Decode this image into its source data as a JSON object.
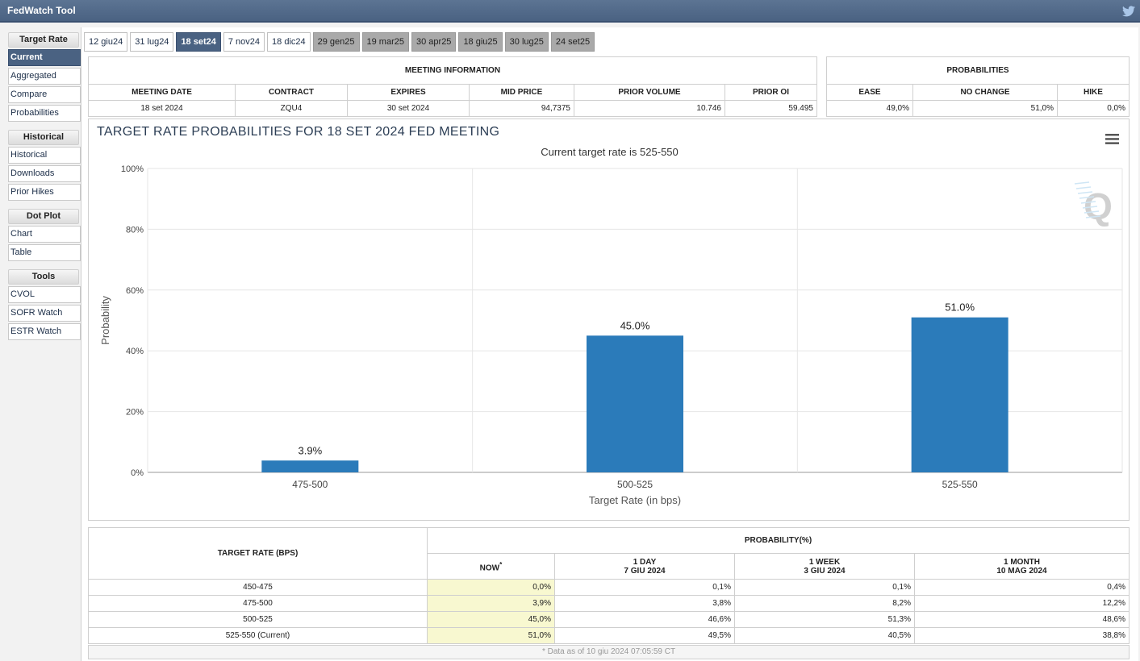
{
  "app": {
    "title": "FedWatch Tool"
  },
  "sidebar": {
    "sections": [
      {
        "heading": "Target Rate",
        "items": [
          "Current",
          "Aggregated",
          "Compare",
          "Probabilities"
        ]
      },
      {
        "heading": "Historical",
        "items": [
          "Historical",
          "Downloads",
          "Prior Hikes"
        ]
      },
      {
        "heading": "Dot Plot",
        "items": [
          "Chart",
          "Table"
        ]
      },
      {
        "heading": "Tools",
        "items": [
          "CVOL",
          "SOFR Watch",
          "ESTR Watch"
        ]
      }
    ]
  },
  "tabs": [
    {
      "label": "12 giu24",
      "state": "normal"
    },
    {
      "label": "31 lug24",
      "state": "normal"
    },
    {
      "label": "18 set24",
      "state": "active"
    },
    {
      "label": "7 nov24",
      "state": "normal"
    },
    {
      "label": "18 dic24",
      "state": "normal"
    },
    {
      "label": "29 gen25",
      "state": "future"
    },
    {
      "label": "19 mar25",
      "state": "future"
    },
    {
      "label": "30 apr25",
      "state": "future"
    },
    {
      "label": "18 giu25",
      "state": "future"
    },
    {
      "label": "30 lug25",
      "state": "future"
    },
    {
      "label": "24 set25",
      "state": "future"
    }
  ],
  "meeting_info": {
    "heading": "MEETING INFORMATION",
    "columns": [
      "MEETING DATE",
      "CONTRACT",
      "EXPIRES",
      "MID PRICE",
      "PRIOR VOLUME",
      "PRIOR OI"
    ],
    "row": [
      "18 set 2024",
      "ZQU4",
      "30 set 2024",
      "94,7375",
      "10.746",
      "59.495"
    ]
  },
  "probabilities": {
    "heading": "PROBABILITIES",
    "columns": [
      "EASE",
      "NO CHANGE",
      "HIKE"
    ],
    "row": [
      "49,0%",
      "51,0%",
      "0,0%"
    ]
  },
  "chart": {
    "title": "TARGET RATE PROBABILITIES FOR 18 SET 2024 FED MEETING",
    "subtitle": "Current target rate is 525-550",
    "watermark": "Q"
  },
  "chart_data": {
    "type": "bar",
    "title": "TARGET RATE PROBABILITIES FOR 18 SET 2024 FED MEETING",
    "subtitle": "Current target rate is 525-550",
    "categories": [
      "475-500",
      "500-525",
      "525-550"
    ],
    "values": [
      3.9,
      45.0,
      51.0
    ],
    "value_labels": [
      "3.9%",
      "45.0%",
      "51.0%"
    ],
    "xlabel": "Target Rate (in bps)",
    "ylabel": "Probability",
    "ylim": [
      0,
      100
    ],
    "yticks": [
      "0%",
      "20%",
      "40%",
      "60%",
      "80%",
      "100%"
    ],
    "grid": true,
    "color": "#2b7bba"
  },
  "bottom_table": {
    "col_target": "TARGET RATE (BPS)",
    "col_prob": "PROBABILITY(%)",
    "sub_cols": [
      {
        "line1": "NOW",
        "line2": "",
        "sup": "*"
      },
      {
        "line1": "1 DAY",
        "line2": "7 GIU 2024",
        "sup": ""
      },
      {
        "line1": "1 WEEK",
        "line2": "3 GIU 2024",
        "sup": ""
      },
      {
        "line1": "1 MONTH",
        "line2": "10 MAG 2024",
        "sup": ""
      }
    ],
    "rows": [
      [
        "450-475",
        "0,0%",
        "0,1%",
        "0,1%",
        "0,4%"
      ],
      [
        "475-500",
        "3,9%",
        "3,8%",
        "8,2%",
        "12,2%"
      ],
      [
        "500-525",
        "45,0%",
        "46,6%",
        "51,3%",
        "48,6%"
      ],
      [
        "525-550 (Current)",
        "51,0%",
        "49,5%",
        "40,5%",
        "38,8%"
      ]
    ],
    "footnote": "* Data as of 10 giu 2024 07:05:59 CT"
  }
}
